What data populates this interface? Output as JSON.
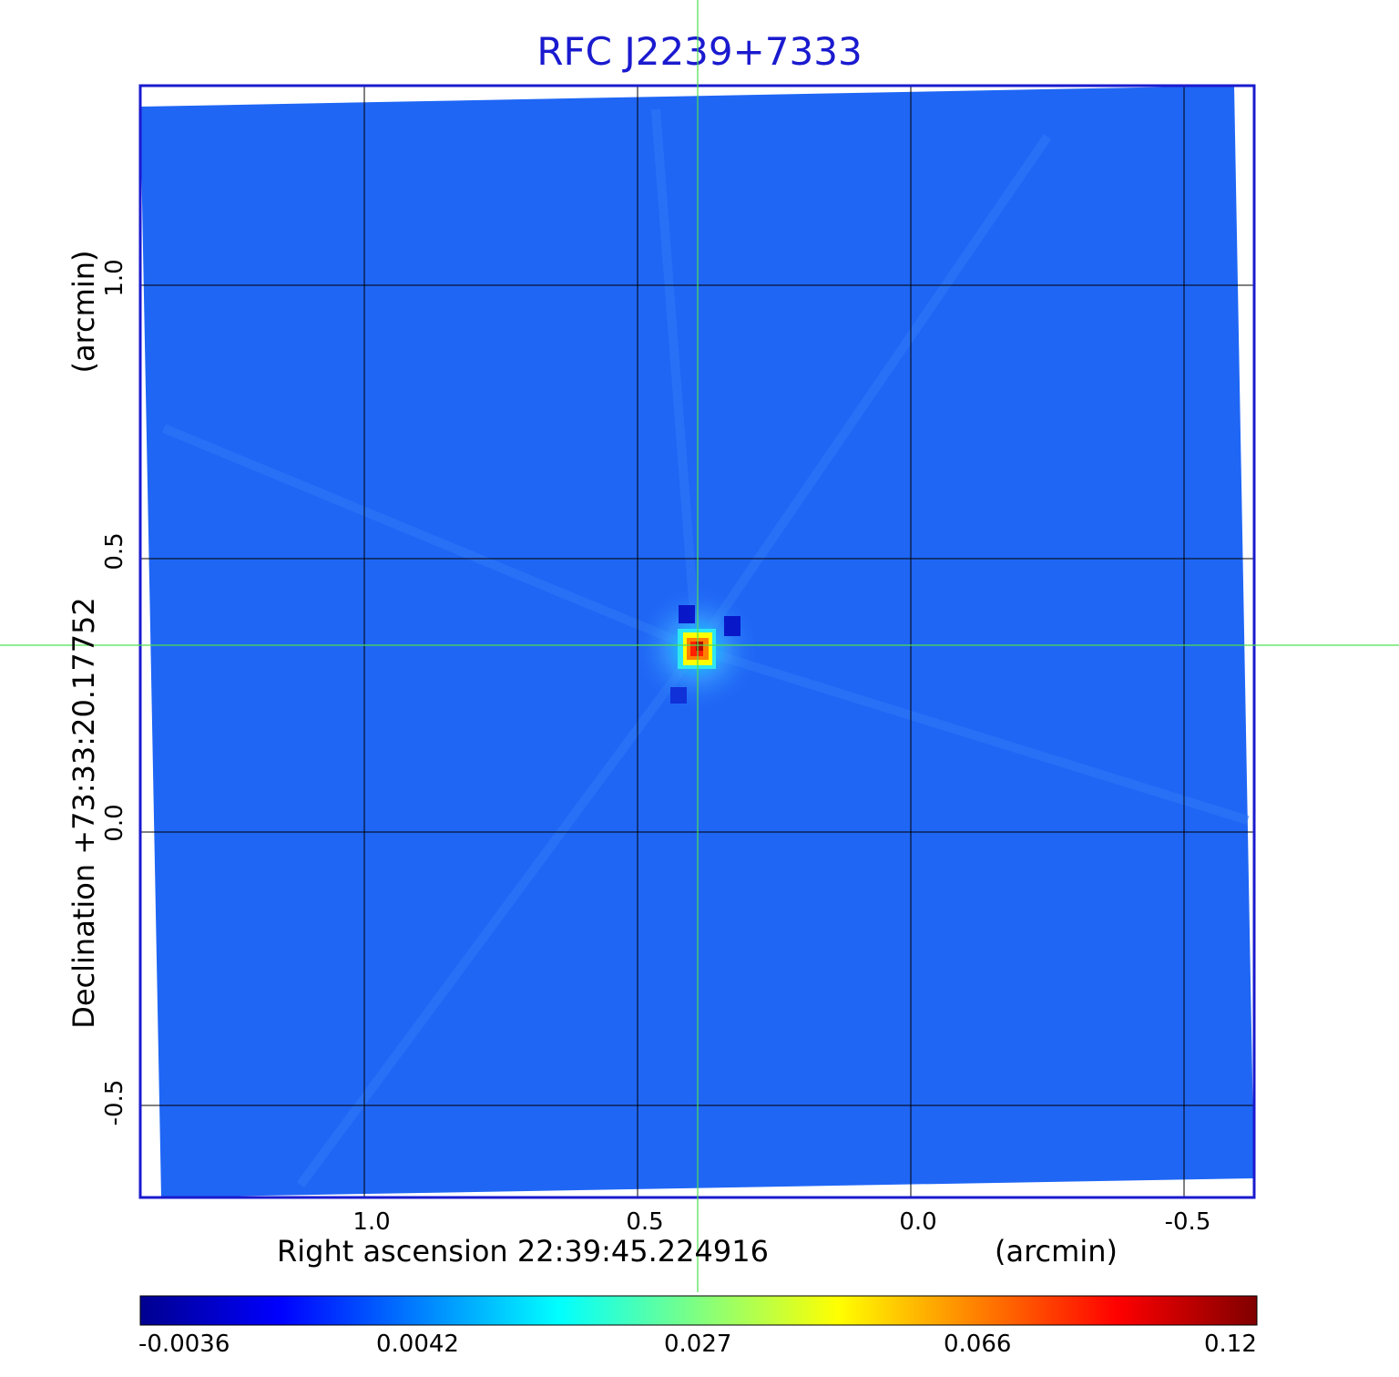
{
  "title": "RFC J2239+7333",
  "axes": {
    "x_label": "Right ascension  22:39:45.224916",
    "x_unit": "(arcmin)",
    "x_ticks": [
      "1.0",
      "0.5",
      "0.0",
      "-0.5"
    ],
    "y_label": "Declination  +73:33:20.17752",
    "y_unit": "(arcmin)",
    "y_ticks": [
      "1.0",
      "0.5",
      "0.0",
      "-0.5"
    ]
  },
  "colorbar": {
    "ticks": [
      "-0.0036",
      "0.0042",
      "0.027",
      "0.066",
      "0.12"
    ],
    "colormap": [
      "#00008f",
      "#0000ff",
      "#0080ff",
      "#00ffff",
      "#80ff80",
      "#ffff00",
      "#ff8000",
      "#ff0000",
      "#800000"
    ]
  },
  "colors": {
    "frame": "#1a1acf",
    "background_map": "#1f66f5",
    "crosshair": "#4de04d",
    "grid": "#000000",
    "title": "#1a1acf"
  }
}
